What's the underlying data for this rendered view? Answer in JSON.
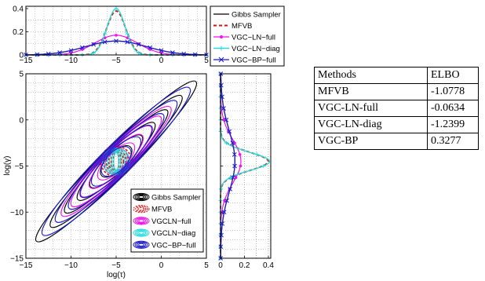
{
  "series_colors": {
    "gibbs": "#000000",
    "mfvb": "#dd1111",
    "lnfull": "#ee11ee",
    "lndiag": "#22dddd",
    "bp": "#1a1acc"
  },
  "chart_data": [
    {
      "type": "line",
      "panel": "top-marginal",
      "xlim": [
        -15,
        5
      ],
      "ylim": [
        0,
        0.42
      ],
      "xticks": [
        "−15",
        "−10",
        "−5",
        "0",
        "5"
      ],
      "yticks": [
        "0",
        "0.2",
        "0.4"
      ],
      "grid": true,
      "legend_position": "right",
      "series": [
        {
          "name": "Gibbs Sampler",
          "key": "gibbs",
          "mean": -5.0,
          "peak": 0.12
        },
        {
          "name": "MFVB",
          "key": "mfvb",
          "mean": -5.0,
          "peak": 0.38
        },
        {
          "name": "VGC−LN−full",
          "key": "lnfull",
          "mean": -5.0,
          "peak": 0.17
        },
        {
          "name": "VGC−LN−diag",
          "key": "lndiag",
          "mean": -5.0,
          "peak": 0.4
        },
        {
          "name": "VGC−BP−full",
          "key": "bp",
          "mean": -5.0,
          "peak": 0.12
        }
      ]
    },
    {
      "type": "contour",
      "panel": "joint",
      "xlabel": "log(τ)",
      "ylabel": "log(γ)",
      "xlim": [
        -15,
        5
      ],
      "ylim": [
        -15,
        5
      ],
      "xticks": [
        "−15",
        "−10",
        "−5",
        "0",
        "5"
      ],
      "yticks": [
        "−15",
        "−10",
        "−5",
        "0",
        "5"
      ],
      "grid": true,
      "legend_position": "bottom-right",
      "series": [
        {
          "name": "Gibbs Sampler",
          "key": "gibbs",
          "center": [
            -5,
            -4.5
          ],
          "major": 12.5,
          "minor": 1.6,
          "angle_deg": 45
        },
        {
          "name": "MFVB",
          "key": "mfvb",
          "center": [
            -5,
            -4.5
          ],
          "major": 1.7,
          "minor": 1.7,
          "angle_deg": 0
        },
        {
          "name": "VGCLN−full",
          "key": "lnfull",
          "center": [
            -5,
            -4.5
          ],
          "major": 8.5,
          "minor": 1.5,
          "angle_deg": 45
        },
        {
          "name": "VGCLN−diag",
          "key": "lndiag",
          "center": [
            -5,
            -4.5
          ],
          "major": 1.5,
          "minor": 1.5,
          "angle_deg": 0
        },
        {
          "name": "VGC−BP−full",
          "key": "bp",
          "center": [
            -5,
            -4.5
          ],
          "major": 11.5,
          "minor": 1.7,
          "angle_deg": 45
        }
      ]
    },
    {
      "type": "line",
      "panel": "right-marginal",
      "xlim": [
        0,
        0.42
      ],
      "ylim": [
        -15,
        5
      ],
      "xticks": [
        "0",
        "0.2",
        "0.4"
      ],
      "grid": true,
      "series": [
        {
          "name": "Gibbs Sampler",
          "key": "gibbs",
          "mean": -4.5,
          "peak": 0.12
        },
        {
          "name": "MFVB",
          "key": "mfvb",
          "mean": -4.5,
          "peak": 0.4
        },
        {
          "name": "VGC−LN−full",
          "key": "lnfull",
          "mean": -4.5,
          "peak": 0.17
        },
        {
          "name": "VGC−LN−diag",
          "key": "lndiag",
          "mean": -4.5,
          "peak": 0.41
        },
        {
          "name": "VGC−BP−full",
          "key": "bp",
          "mean": -4.5,
          "peak": 0.12
        }
      ]
    }
  ],
  "table": {
    "headers": [
      "Methods",
      "ELBO"
    ],
    "rows": [
      [
        "MFVB",
        "-1.0778"
      ],
      [
        "VGC-LN-full",
        "-0.0634"
      ],
      [
        "VGC-LN-diag",
        "-1.2399"
      ],
      [
        "VGC-BP",
        "0.3277"
      ]
    ]
  }
}
